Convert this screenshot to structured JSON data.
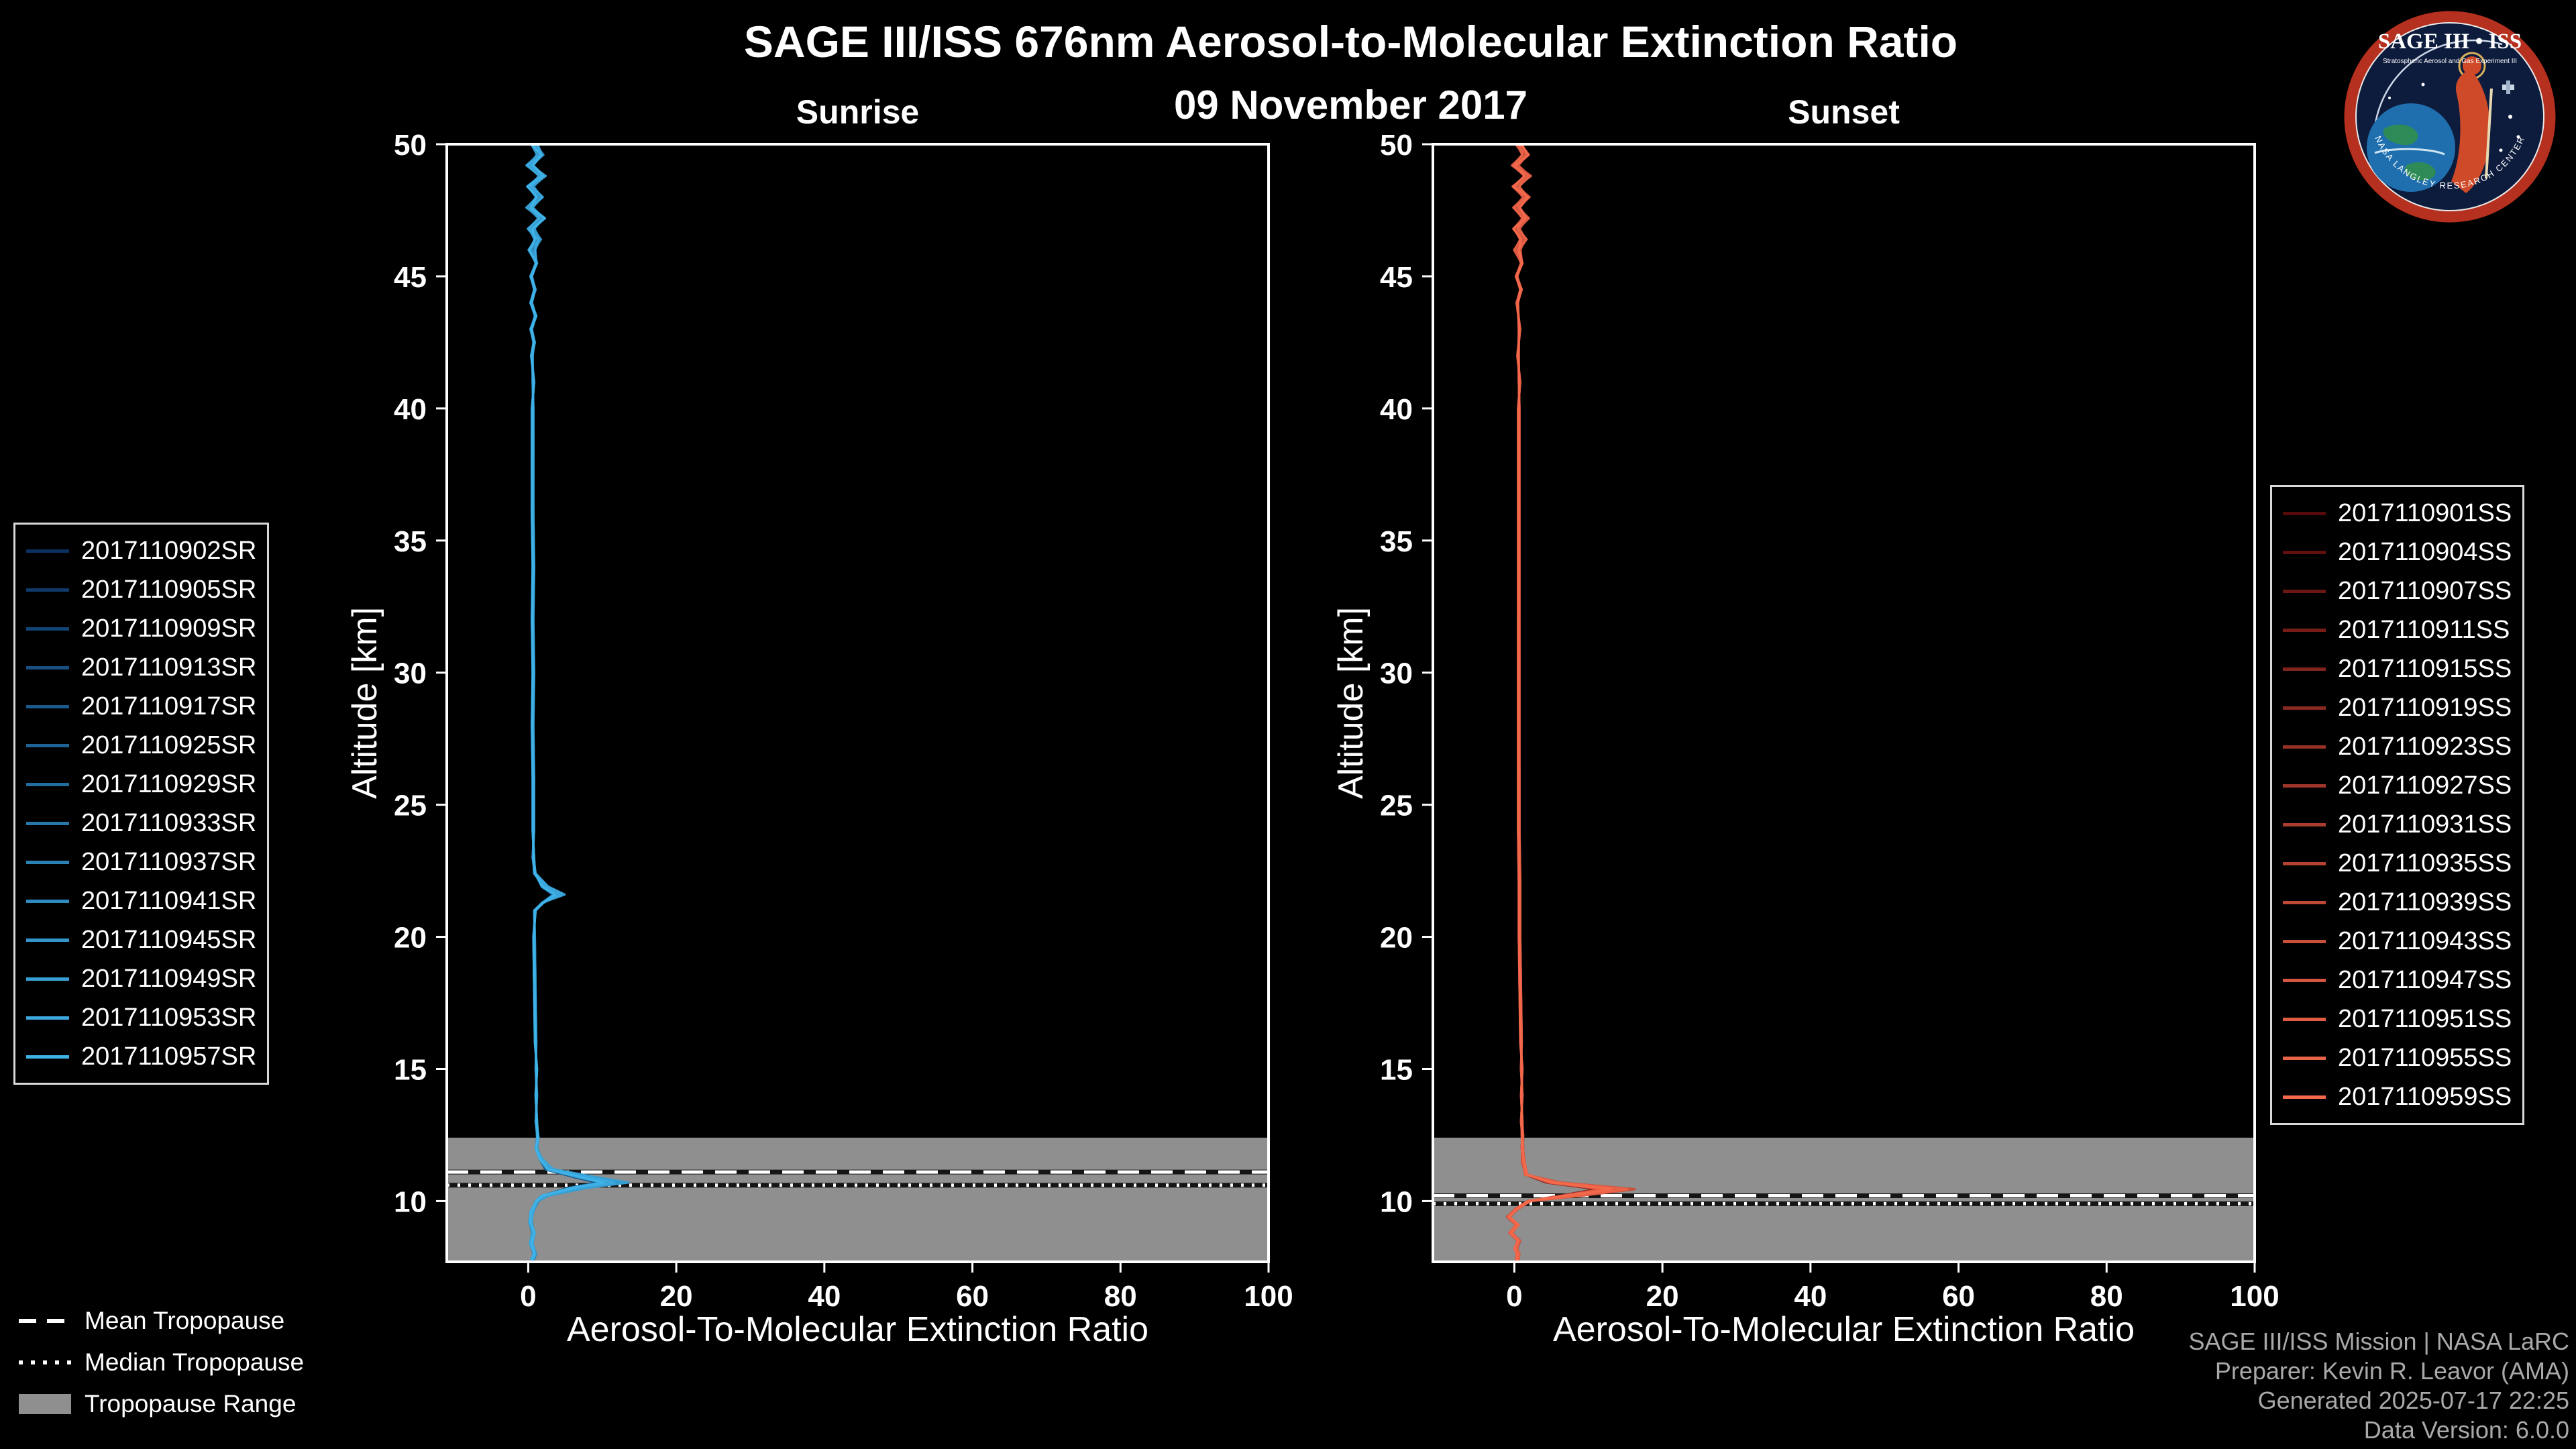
{
  "header": {
    "title": "SAGE III/ISS 676nm Aerosol-to-Molecular Extinction Ratio",
    "date": "09 November 2017"
  },
  "logo": {
    "name_text": "SAGE III • ISS",
    "sub_text": "Stratospheric Aerosol and Gas Experiment III",
    "ring_text": "NASA LANGLEY RESEARCH CENTER"
  },
  "tropopause_legend": {
    "mean": "Mean Tropopause",
    "median": "Median Tropopause",
    "range": "Tropopause Range"
  },
  "credits": {
    "line1": "SAGE III/ISS Mission | NASA LaRC",
    "line2": "Preparer: Kevin R. Leavor (AMA)",
    "line3": "Generated 2025-07-17 22:25",
    "line4": "Data Version: 6.0.0"
  },
  "chart_data": [
    {
      "type": "line",
      "title": "Sunrise",
      "xlabel": "Aerosol-To-Molecular Extinction Ratio",
      "ylabel": "Altitude [km]",
      "xlim": [
        -11,
        100
      ],
      "ylim": [
        7.7,
        50
      ],
      "xticks": [
        0,
        20,
        40,
        60,
        80,
        100
      ],
      "yticks": [
        10,
        15,
        20,
        25,
        30,
        35,
        40,
        45,
        50
      ],
      "grid": false,
      "legend_position": "left-outside",
      "series_color_start": "#0a3161",
      "series_color_end": "#3fb3e8",
      "series_labels": [
        "2017110902SR",
        "2017110905SR",
        "2017110909SR",
        "2017110913SR",
        "2017110917SR",
        "2017110925SR",
        "2017110929SR",
        "2017110933SR",
        "2017110937SR",
        "2017110941SR",
        "2017110945SR",
        "2017110949SR",
        "2017110953SR",
        "2017110957SR"
      ],
      "mean_tropopause_km": 11.1,
      "median_tropopause_km": 10.6,
      "tropopause_range_km": [
        7.7,
        12.4
      ],
      "tropopause_band_color": "#8f8f8f",
      "profile_alt_ratio": [
        [
          50.0,
          0.8
        ],
        [
          49.6,
          1.6
        ],
        [
          49.2,
          0.2
        ],
        [
          48.8,
          1.9
        ],
        [
          48.4,
          0.3
        ],
        [
          48.0,
          1.5
        ],
        [
          47.6,
          0.2
        ],
        [
          47.2,
          1.8
        ],
        [
          46.8,
          0.4
        ],
        [
          46.4,
          1.3
        ],
        [
          46.0,
          0.5
        ],
        [
          45.5,
          1.1
        ],
        [
          45.0,
          0.4
        ],
        [
          44.5,
          0.9
        ],
        [
          44.0,
          0.4
        ],
        [
          43.5,
          1.0
        ],
        [
          43.0,
          0.4
        ],
        [
          42.5,
          0.8
        ],
        [
          42.0,
          0.5
        ],
        [
          41.0,
          0.7
        ],
        [
          40.0,
          0.6
        ],
        [
          38.0,
          0.6
        ],
        [
          36.0,
          0.6
        ],
        [
          34.0,
          0.7
        ],
        [
          32.0,
          0.6
        ],
        [
          30.0,
          0.7
        ],
        [
          28.0,
          0.6
        ],
        [
          26.0,
          0.7
        ],
        [
          24.0,
          0.7
        ],
        [
          23.0,
          0.7
        ],
        [
          22.4,
          0.9
        ],
        [
          21.9,
          2.6
        ],
        [
          21.6,
          4.8
        ],
        [
          21.3,
          2.0
        ],
        [
          21.0,
          0.9
        ],
        [
          20.0,
          0.8
        ],
        [
          18.0,
          0.9
        ],
        [
          16.0,
          1.0
        ],
        [
          15.0,
          1.1
        ],
        [
          14.0,
          1.1
        ],
        [
          13.0,
          1.1
        ],
        [
          12.4,
          1.3
        ],
        [
          12.0,
          1.1
        ],
        [
          11.6,
          1.7
        ],
        [
          11.2,
          3.5
        ],
        [
          10.9,
          9.0
        ],
        [
          10.7,
          13.0
        ],
        [
          10.5,
          7.5
        ],
        [
          10.2,
          2.4
        ],
        [
          10.0,
          1.2
        ],
        [
          9.6,
          0.5
        ],
        [
          9.2,
          0.3
        ],
        [
          8.8,
          0.7
        ],
        [
          8.4,
          0.4
        ],
        [
          8.0,
          0.9
        ],
        [
          7.8,
          0.6
        ]
      ]
    },
    {
      "type": "line",
      "title": "Sunset",
      "xlabel": "Aerosol-To-Molecular Extinction Ratio",
      "ylabel": "Altitude [km]",
      "xlim": [
        -11,
        100
      ],
      "ylim": [
        7.7,
        50
      ],
      "xticks": [
        0,
        20,
        40,
        60,
        80,
        100
      ],
      "yticks": [
        10,
        15,
        20,
        25,
        30,
        35,
        40,
        45,
        50
      ],
      "grid": false,
      "legend_position": "right-outside",
      "series_color_start": "#560a0a",
      "series_color_end": "#f4694c",
      "series_labels": [
        "2017110901SS",
        "2017110904SS",
        "2017110907SS",
        "2017110911SS",
        "2017110915SS",
        "2017110919SS",
        "2017110923SS",
        "2017110927SS",
        "2017110931SS",
        "2017110935SS",
        "2017110939SS",
        "2017110943SS",
        "2017110947SS",
        "2017110951SS",
        "2017110955SS",
        "2017110959SS"
      ],
      "mean_tropopause_km": 10.2,
      "median_tropopause_km": 9.9,
      "tropopause_range_km": [
        7.7,
        12.4
      ],
      "tropopause_band_color": "#8f8f8f",
      "profile_alt_ratio": [
        [
          50.0,
          0.6
        ],
        [
          49.6,
          1.5
        ],
        [
          49.2,
          0.1
        ],
        [
          48.8,
          1.8
        ],
        [
          48.4,
          0.2
        ],
        [
          48.0,
          1.6
        ],
        [
          47.6,
          0.3
        ],
        [
          47.2,
          1.5
        ],
        [
          46.8,
          0.3
        ],
        [
          46.4,
          1.2
        ],
        [
          46.0,
          0.4
        ],
        [
          45.5,
          1.0
        ],
        [
          45.0,
          0.3
        ],
        [
          44.5,
          0.9
        ],
        [
          44.0,
          0.4
        ],
        [
          43.0,
          0.7
        ],
        [
          42.0,
          0.5
        ],
        [
          41.0,
          0.7
        ],
        [
          40.0,
          0.6
        ],
        [
          38.0,
          0.6
        ],
        [
          36.0,
          0.6
        ],
        [
          34.0,
          0.6
        ],
        [
          32.0,
          0.6
        ],
        [
          30.0,
          0.6
        ],
        [
          28.0,
          0.6
        ],
        [
          26.0,
          0.6
        ],
        [
          24.0,
          0.6
        ],
        [
          22.0,
          0.7
        ],
        [
          20.0,
          0.7
        ],
        [
          18.0,
          0.8
        ],
        [
          16.0,
          0.9
        ],
        [
          15.0,
          1.0
        ],
        [
          14.0,
          1.0
        ],
        [
          13.0,
          1.0
        ],
        [
          12.5,
          1.1
        ],
        [
          12.0,
          1.1
        ],
        [
          11.5,
          1.2
        ],
        [
          11.0,
          1.6
        ],
        [
          10.7,
          6.0
        ],
        [
          10.45,
          15.5
        ],
        [
          10.2,
          8.5
        ],
        [
          10.0,
          2.0
        ],
        [
          9.7,
          0.3
        ],
        [
          9.4,
          -0.8
        ],
        [
          9.1,
          0.4
        ],
        [
          8.8,
          -0.5
        ],
        [
          8.5,
          0.6
        ],
        [
          8.2,
          0.2
        ],
        [
          8.0,
          0.5
        ],
        [
          7.8,
          0.4
        ]
      ]
    }
  ]
}
